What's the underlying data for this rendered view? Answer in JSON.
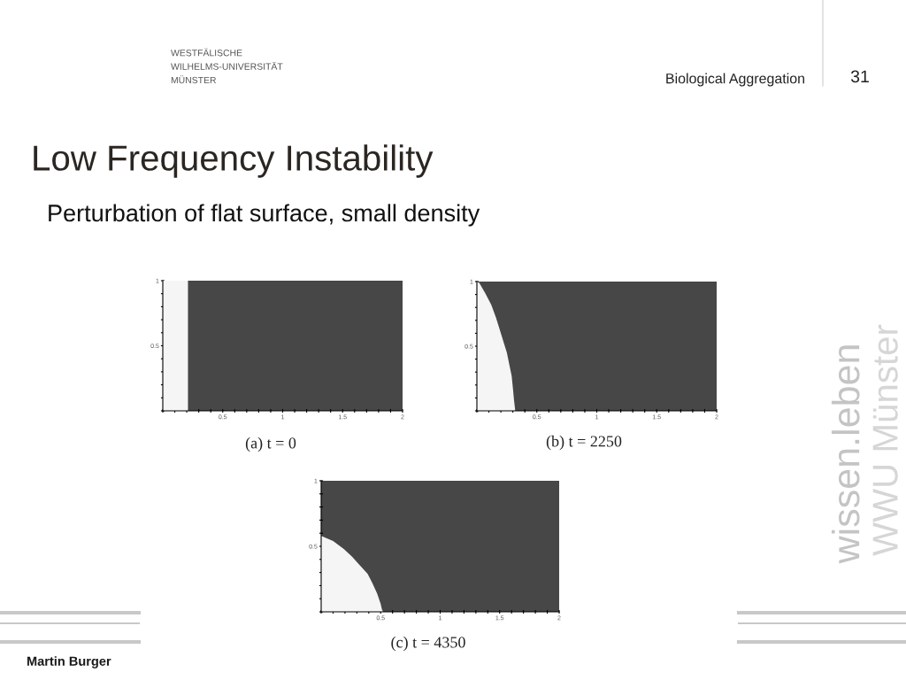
{
  "chart_data": [
    {
      "type": "area",
      "title": "Low Frequency Instability",
      "subtitle": "Perturbation of flat surface, small density",
      "annotations": [
        "(a) t = 0",
        "Biological Aggregation",
        "31",
        "WESTFÄLISCHE\nWILHELMS-UNIVERSITÄT\nMÜNSTER",
        "wissen.leben",
        "WWU Münster",
        "Martin Burger"
      ],
      "bands": [
        {
          "axis": "y",
          "from": 0,
          "to": 1,
          "color": "#474747"
        }
      ],
      "series": [
        {
          "color": "#f5f5f5",
          "x": [
            0,
            0.21
          ],
          "values": [
            1,
            1
          ]
        }
      ],
      "xlim": [
        0,
        2
      ],
      "ylim": [
        0,
        1
      ],
      "xticks": [
        {
          "value": 0,
          "label": null
        },
        {
          "value": 0.1,
          "label": null
        },
        {
          "value": 0.2,
          "label": null
        },
        {
          "value": 0.3,
          "label": null
        },
        {
          "value": 0.4,
          "label": null
        },
        0.5,
        {
          "value": 0.6,
          "label": null
        },
        {
          "value": 0.7,
          "label": null
        },
        {
          "value": 0.8,
          "label": null
        },
        {
          "value": 0.9,
          "label": null
        },
        1,
        {
          "value": 1.1,
          "label": null
        },
        {
          "value": 1.2,
          "label": null
        },
        {
          "value": 1.3,
          "label": null
        },
        {
          "value": 1.4,
          "label": null
        },
        1.5,
        {
          "value": 1.6,
          "label": null
        },
        {
          "value": 1.7,
          "label": null
        },
        {
          "value": 1.8,
          "label": null
        },
        {
          "value": 1.9,
          "label": null
        },
        2
      ],
      "yticks": [
        {
          "value": 0,
          "label": null
        },
        {
          "value": 0.1,
          "label": null
        },
        {
          "value": 0.2,
          "label": null
        },
        {
          "value": 0.3,
          "label": null
        },
        {
          "value": 0.4,
          "label": null
        },
        0.5,
        {
          "value": 0.6,
          "label": null
        },
        {
          "value": 0.7,
          "label": null
        },
        {
          "value": 0.8,
          "label": null
        },
        {
          "value": 0.9,
          "label": null
        },
        1
      ]
    },
    {
      "type": "area",
      "annotations": [
        "(b) t = 2250"
      ],
      "bands": [
        {
          "axis": "y",
          "from": 0,
          "to": 1,
          "color": "#474747"
        }
      ],
      "series": [
        {
          "color": "#f5f5f5",
          "x": [
            0,
            0.02,
            0.07,
            0.12,
            0.16,
            0.19,
            0.22,
            0.25,
            0.27,
            0.29,
            0.3,
            0.31,
            0.32
          ],
          "values": [
            1,
            0.99,
            0.91,
            0.82,
            0.72,
            0.63,
            0.54,
            0.45,
            0.36,
            0.27,
            0.18,
            0.08,
            0
          ]
        }
      ],
      "xlim": [
        0,
        2
      ],
      "ylim": [
        0,
        1
      ],
      "xticks": [
        {
          "value": 0,
          "label": null
        },
        {
          "value": 0.1,
          "label": null
        },
        {
          "value": 0.2,
          "label": null
        },
        {
          "value": 0.3,
          "label": null
        },
        {
          "value": 0.4,
          "label": null
        },
        0.5,
        {
          "value": 0.6,
          "label": null
        },
        {
          "value": 0.7,
          "label": null
        },
        {
          "value": 0.8,
          "label": null
        },
        {
          "value": 0.9,
          "label": null
        },
        1,
        {
          "value": 1.1,
          "label": null
        },
        {
          "value": 1.2,
          "label": null
        },
        {
          "value": 1.3,
          "label": null
        },
        {
          "value": 1.4,
          "label": null
        },
        1.5,
        {
          "value": 1.6,
          "label": null
        },
        {
          "value": 1.7,
          "label": null
        },
        {
          "value": 1.8,
          "label": null
        },
        {
          "value": 1.9,
          "label": null
        },
        2
      ],
      "yticks": [
        {
          "value": 0,
          "label": null
        },
        {
          "value": 0.1,
          "label": null
        },
        {
          "value": 0.2,
          "label": null
        },
        {
          "value": 0.3,
          "label": null
        },
        {
          "value": 0.4,
          "label": null
        },
        0.5,
        {
          "value": 0.6,
          "label": null
        },
        {
          "value": 0.7,
          "label": null
        },
        {
          "value": 0.8,
          "label": null
        },
        {
          "value": 0.9,
          "label": null
        },
        1
      ]
    },
    {
      "type": "area",
      "annotations": [
        "(c) t = 4350"
      ],
      "bands": [
        {
          "axis": "y",
          "from": 0,
          "to": 1,
          "color": "#474747"
        }
      ],
      "series": [
        {
          "color": "#f5f5f5",
          "x": [
            0,
            0.1,
            0.19,
            0.26,
            0.32,
            0.39,
            0.43,
            0.47,
            0.5,
            0.51,
            0.52
          ],
          "values": [
            0.58,
            0.54,
            0.48,
            0.42,
            0.36,
            0.29,
            0.22,
            0.14,
            0.06,
            0.02,
            0
          ]
        }
      ],
      "xlim": [
        0,
        2
      ],
      "ylim": [
        0,
        1
      ],
      "xticks": [
        {
          "value": 0,
          "label": null
        },
        {
          "value": 0.1,
          "label": null
        },
        {
          "value": 0.2,
          "label": null
        },
        {
          "value": 0.3,
          "label": null
        },
        {
          "value": 0.4,
          "label": null
        },
        0.5,
        {
          "value": 0.6,
          "label": null
        },
        {
          "value": 0.7,
          "label": null
        },
        {
          "value": 0.8,
          "label": null
        },
        {
          "value": 0.9,
          "label": null
        },
        1,
        {
          "value": 1.1,
          "label": null
        },
        {
          "value": 1.2,
          "label": null
        },
        {
          "value": 1.3,
          "label": null
        },
        {
          "value": 1.4,
          "label": null
        },
        1.5,
        {
          "value": 1.6,
          "label": null
        },
        {
          "value": 1.7,
          "label": null
        },
        {
          "value": 1.8,
          "label": null
        },
        {
          "value": 1.9,
          "label": null
        },
        2
      ],
      "yticks": [
        {
          "value": 0,
          "label": null
        },
        {
          "value": 0.1,
          "label": null
        },
        {
          "value": 0.2,
          "label": null
        },
        {
          "value": 0.3,
          "label": null
        },
        {
          "value": 0.4,
          "label": null
        },
        0.5,
        {
          "value": 0.6,
          "label": null
        },
        {
          "value": 0.7,
          "label": null
        },
        {
          "value": 0.8,
          "label": null
        },
        {
          "value": 0.9,
          "label": null
        },
        1
      ]
    }
  ]
}
